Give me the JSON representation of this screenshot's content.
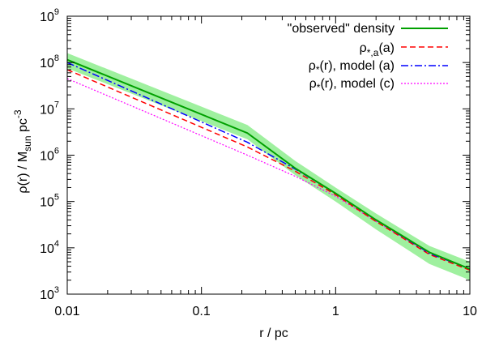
{
  "chart_data": {
    "type": "line",
    "xscale": "log",
    "yscale": "log",
    "xlim": [
      0.01,
      10
    ],
    "ylim": [
      1000,
      1000000000
    ],
    "xlabel": "r / pc",
    "ylabel": {
      "base": "ρ(r) / M",
      "subscript": "sun",
      "unit": " pc",
      "superscript": "-3"
    },
    "x_ticks": [
      {
        "value": 0.01,
        "label": "0.01"
      },
      {
        "value": 0.1,
        "label": "0.1"
      },
      {
        "value": 1,
        "label": "1"
      },
      {
        "value": 10,
        "label": "10"
      }
    ],
    "y_ticks": [
      {
        "value": 1000,
        "base": "10",
        "exp": "3"
      },
      {
        "value": 10000,
        "base": "10",
        "exp": "4"
      },
      {
        "value": 100000,
        "base": "10",
        "exp": "5"
      },
      {
        "value": 1000000,
        "base": "10",
        "exp": "6"
      },
      {
        "value": 10000000,
        "base": "10",
        "exp": "7"
      },
      {
        "value": 100000000,
        "base": "10",
        "exp": "8"
      },
      {
        "value": 1000000000,
        "base": "10",
        "exp": "9"
      }
    ],
    "legend_position": "top-right",
    "band": {
      "color": "#9ff09f",
      "x": [
        0.01,
        0.22,
        0.5,
        1,
        2,
        5,
        10
      ],
      "upper": [
        160000000,
        4500000,
        750000,
        200000,
        55000,
        11000,
        5000
      ],
      "lower": [
        75000000,
        2200000,
        370000,
        100000,
        25000,
        4500,
        2000
      ]
    },
    "series": [
      {
        "name": "\"observed\" density",
        "color": "#00a000",
        "dash": "solid",
        "x": [
          0.01,
          0.22,
          0.5,
          1,
          2,
          5,
          10
        ],
        "values": [
          115000000,
          3000000,
          520000,
          150000,
          40000,
          8000,
          3500
        ]
      },
      {
        "name_parts": {
          "base": "ρ",
          "subscript": "*,a",
          "suffix": "(a)"
        },
        "color": "#ff0000",
        "dash": "dashed",
        "x": [
          0.01,
          0.22,
          0.5,
          1,
          2,
          5,
          10
        ],
        "values": [
          70000000,
          1500000,
          450000,
          140000,
          37000,
          7200,
          3300
        ]
      },
      {
        "name_parts": {
          "base": "ρ",
          "subscript": "*",
          "suffix": "(r), model (a)"
        },
        "color": "#0000ff",
        "dash": "dashdot",
        "x": [
          0.01,
          0.22,
          0.5,
          1,
          2,
          5,
          10
        ],
        "values": [
          100000000,
          1900000,
          500000,
          150000,
          40000,
          7600,
          3500
        ]
      },
      {
        "name_parts": {
          "base": "ρ",
          "subscript": "*",
          "suffix": "(r), model (c)"
        },
        "color": "#ff00ff",
        "dash": "dotted",
        "x": [
          0.01,
          0.22,
          0.5,
          1,
          2,
          5,
          10
        ],
        "values": [
          45000000,
          1000000,
          350000,
          130000,
          37000,
          7600,
          3500
        ]
      }
    ]
  }
}
